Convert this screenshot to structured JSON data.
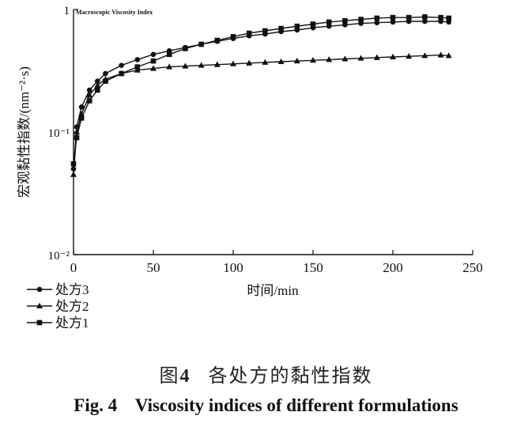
{
  "chart_data": {
    "type": "line",
    "title": "Macroscopic Viscosity Index",
    "xlabel": "时间/min",
    "ylabel": "宏观黏性指数/(nm⁻²·s)",
    "xlim": [
      0,
      250
    ],
    "ylim": [
      0.01,
      1
    ],
    "yscale": "log",
    "x_ticks": [
      "0",
      "50",
      "100",
      "150",
      "200",
      "250"
    ],
    "y_ticks": [
      {
        "value": 1,
        "label": "1"
      },
      {
        "value": 0.1,
        "label": "10⁻¹"
      },
      {
        "value": 0.01,
        "label": "10⁻²"
      }
    ],
    "legend_position": "bottom-left",
    "series": [
      {
        "name": "处方3",
        "marker": "circle",
        "x": [
          0,
          2,
          5,
          10,
          15,
          20,
          30,
          40,
          50,
          60,
          70,
          80,
          90,
          100,
          110,
          120,
          130,
          140,
          150,
          160,
          170,
          180,
          190,
          200,
          210,
          220,
          230,
          235
        ],
        "y": [
          0.05,
          0.11,
          0.16,
          0.22,
          0.26,
          0.3,
          0.35,
          0.39,
          0.43,
          0.46,
          0.49,
          0.52,
          0.55,
          0.58,
          0.61,
          0.63,
          0.66,
          0.68,
          0.71,
          0.73,
          0.75,
          0.77,
          0.78,
          0.79,
          0.8,
          0.8,
          0.8,
          0.79
        ]
      },
      {
        "name": "处方2",
        "marker": "triangle",
        "x": [
          0,
          2,
          5,
          10,
          15,
          20,
          30,
          40,
          50,
          60,
          70,
          80,
          90,
          100,
          110,
          120,
          130,
          140,
          150,
          160,
          170,
          180,
          190,
          200,
          210,
          220,
          230,
          235
        ],
        "y": [
          0.045,
          0.1,
          0.14,
          0.2,
          0.24,
          0.27,
          0.3,
          0.32,
          0.33,
          0.34,
          0.345,
          0.35,
          0.355,
          0.36,
          0.365,
          0.37,
          0.375,
          0.38,
          0.385,
          0.39,
          0.395,
          0.4,
          0.405,
          0.41,
          0.415,
          0.42,
          0.425,
          0.42
        ]
      },
      {
        "name": "处方1",
        "marker": "square",
        "x": [
          0,
          2,
          5,
          10,
          15,
          20,
          30,
          40,
          50,
          60,
          70,
          80,
          90,
          100,
          110,
          120,
          130,
          140,
          150,
          160,
          170,
          180,
          190,
          200,
          210,
          220,
          230,
          235
        ],
        "y": [
          0.055,
          0.09,
          0.13,
          0.18,
          0.22,
          0.26,
          0.3,
          0.34,
          0.38,
          0.43,
          0.48,
          0.52,
          0.56,
          0.6,
          0.64,
          0.67,
          0.7,
          0.73,
          0.76,
          0.79,
          0.81,
          0.83,
          0.85,
          0.86,
          0.86,
          0.87,
          0.86,
          0.85
        ]
      }
    ]
  },
  "caption": {
    "cn_prefix": "图",
    "cn_number": "4",
    "cn_text": "各处方的黏性指数",
    "en": "Fig. 4    Viscosity indices of different formulations"
  }
}
